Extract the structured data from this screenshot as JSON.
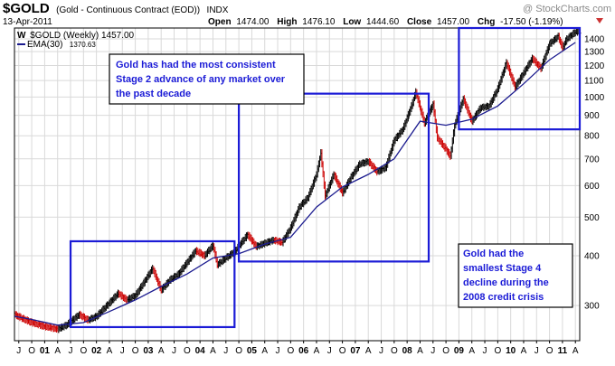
{
  "header": {
    "symbol": "$GOLD",
    "description": "(Gold - Continuous Contract (EOD))",
    "exchange": "INDX",
    "date": "13-Apr-2011",
    "watermark": "@ StockCharts.com",
    "quote": {
      "open_label": "Open",
      "open": "1474.00",
      "high_label": "High",
      "high": "1476.10",
      "low_label": "Low",
      "low": "1444.60",
      "close_label": "Close",
      "close": "1457.00",
      "chg_label": "Chg",
      "chg": "-17.50 (-1.19%)"
    },
    "legend_main": "$GOLD (Weekly) 1457.00",
    "legend_ema_label": "EMA(30)",
    "legend_ema_value": "1370.63"
  },
  "colors": {
    "price_up": "#000000",
    "price_down": "#cc0000",
    "ema": "#1b1b8f",
    "annotation_box": "#1b1bd6",
    "grid": "#d9d9d9",
    "down_arrow": "#cc3333"
  },
  "annotations": [
    {
      "lines": [
        "Gold has had the most consistent",
        "Stage 2 advance of any market over",
        "the past decade"
      ]
    },
    {
      "lines": [
        "Gold had the",
        "smallest Stage 4",
        "decline during the",
        "2008 credit crisis"
      ]
    }
  ],
  "chart_data": {
    "type": "line",
    "title": "$GOLD (Gold - Continuous Contract (EOD)) INDX",
    "xlabel": "",
    "ylabel": "",
    "scale": "log",
    "ylim": [
      245,
      1490
    ],
    "xlim": [
      "2000-06",
      "2011-05"
    ],
    "y_ticks": [
      300,
      400,
      500,
      600,
      700,
      800,
      900,
      1000,
      1100,
      1200,
      1300,
      1400
    ],
    "grid": true,
    "legend": "top-left",
    "x_tick_labels": [
      {
        "x": "2000-07",
        "label": "J",
        "bold": false
      },
      {
        "x": "2000-10",
        "label": "O",
        "bold": false
      },
      {
        "x": "2001-01",
        "label": "01",
        "bold": true
      },
      {
        "x": "2001-04",
        "label": "A",
        "bold": false
      },
      {
        "x": "2001-07",
        "label": "J",
        "bold": false
      },
      {
        "x": "2001-10",
        "label": "O",
        "bold": false
      },
      {
        "x": "2002-01",
        "label": "02",
        "bold": true
      },
      {
        "x": "2002-04",
        "label": "A",
        "bold": false
      },
      {
        "x": "2002-07",
        "label": "J",
        "bold": false
      },
      {
        "x": "2002-10",
        "label": "O",
        "bold": false
      },
      {
        "x": "2003-01",
        "label": "03",
        "bold": true
      },
      {
        "x": "2003-04",
        "label": "A",
        "bold": false
      },
      {
        "x": "2003-07",
        "label": "J",
        "bold": false
      },
      {
        "x": "2003-10",
        "label": "O",
        "bold": false
      },
      {
        "x": "2004-01",
        "label": "04",
        "bold": true
      },
      {
        "x": "2004-04",
        "label": "A",
        "bold": false
      },
      {
        "x": "2004-07",
        "label": "J",
        "bold": false
      },
      {
        "x": "2004-10",
        "label": "O",
        "bold": false
      },
      {
        "x": "2005-01",
        "label": "05",
        "bold": true
      },
      {
        "x": "2005-04",
        "label": "A",
        "bold": false
      },
      {
        "x": "2005-07",
        "label": "J",
        "bold": false
      },
      {
        "x": "2005-10",
        "label": "O",
        "bold": false
      },
      {
        "x": "2006-01",
        "label": "06",
        "bold": true
      },
      {
        "x": "2006-04",
        "label": "A",
        "bold": false
      },
      {
        "x": "2006-07",
        "label": "J",
        "bold": false
      },
      {
        "x": "2006-10",
        "label": "O",
        "bold": false
      },
      {
        "x": "2007-01",
        "label": "07",
        "bold": true
      },
      {
        "x": "2007-04",
        "label": "A",
        "bold": false
      },
      {
        "x": "2007-07",
        "label": "J",
        "bold": false
      },
      {
        "x": "2007-10",
        "label": "O",
        "bold": false
      },
      {
        "x": "2008-01",
        "label": "08",
        "bold": true
      },
      {
        "x": "2008-04",
        "label": "A",
        "bold": false
      },
      {
        "x": "2008-07",
        "label": "J",
        "bold": false
      },
      {
        "x": "2008-10",
        "label": "O",
        "bold": false
      },
      {
        "x": "2009-01",
        "label": "09",
        "bold": true
      },
      {
        "x": "2009-04",
        "label": "A",
        "bold": false
      },
      {
        "x": "2009-07",
        "label": "J",
        "bold": false
      },
      {
        "x": "2009-10",
        "label": "O",
        "bold": false
      },
      {
        "x": "2010-01",
        "label": "10",
        "bold": true
      },
      {
        "x": "2010-04",
        "label": "A",
        "bold": false
      },
      {
        "x": "2010-07",
        "label": "J",
        "bold": false
      },
      {
        "x": "2010-10",
        "label": "O",
        "bold": false
      },
      {
        "x": "2011-01",
        "label": "11",
        "bold": true
      },
      {
        "x": "2011-04",
        "label": "A",
        "bold": false
      }
    ],
    "series": [
      {
        "name": "$GOLD (Weekly)",
        "style": "price",
        "points": [
          {
            "x": "2000-06",
            "y": 285
          },
          {
            "x": "2000-08",
            "y": 278
          },
          {
            "x": "2000-10",
            "y": 272
          },
          {
            "x": "2001-01",
            "y": 266
          },
          {
            "x": "2001-04",
            "y": 262
          },
          {
            "x": "2001-06",
            "y": 268
          },
          {
            "x": "2001-09",
            "y": 285
          },
          {
            "x": "2001-11",
            "y": 276
          },
          {
            "x": "2002-01",
            "y": 282
          },
          {
            "x": "2002-04",
            "y": 305
          },
          {
            "x": "2002-06",
            "y": 322
          },
          {
            "x": "2002-08",
            "y": 310
          },
          {
            "x": "2002-10",
            "y": 318
          },
          {
            "x": "2002-12",
            "y": 343
          },
          {
            "x": "2003-02",
            "y": 372
          },
          {
            "x": "2003-04",
            "y": 328
          },
          {
            "x": "2003-06",
            "y": 348
          },
          {
            "x": "2003-08",
            "y": 360
          },
          {
            "x": "2003-10",
            "y": 385
          },
          {
            "x": "2003-12",
            "y": 412
          },
          {
            "x": "2004-02",
            "y": 400
          },
          {
            "x": "2004-04",
            "y": 425
          },
          {
            "x": "2004-05",
            "y": 380
          },
          {
            "x": "2004-07",
            "y": 395
          },
          {
            "x": "2004-09",
            "y": 410
          },
          {
            "x": "2004-12",
            "y": 452
          },
          {
            "x": "2005-02",
            "y": 422
          },
          {
            "x": "2005-04",
            "y": 430
          },
          {
            "x": "2005-06",
            "y": 438
          },
          {
            "x": "2005-08",
            "y": 432
          },
          {
            "x": "2005-10",
            "y": 470
          },
          {
            "x": "2005-12",
            "y": 530
          },
          {
            "x": "2006-02",
            "y": 560
          },
          {
            "x": "2006-04",
            "y": 640
          },
          {
            "x": "2006-05",
            "y": 725
          },
          {
            "x": "2006-06",
            "y": 565
          },
          {
            "x": "2006-08",
            "y": 640
          },
          {
            "x": "2006-10",
            "y": 575
          },
          {
            "x": "2006-12",
            "y": 630
          },
          {
            "x": "2007-02",
            "y": 680
          },
          {
            "x": "2007-04",
            "y": 690
          },
          {
            "x": "2007-06",
            "y": 650
          },
          {
            "x": "2007-08",
            "y": 665
          },
          {
            "x": "2007-10",
            "y": 780
          },
          {
            "x": "2007-12",
            "y": 830
          },
          {
            "x": "2008-02",
            "y": 950
          },
          {
            "x": "2008-03",
            "y": 1030
          },
          {
            "x": "2008-05",
            "y": 860
          },
          {
            "x": "2008-07",
            "y": 960
          },
          {
            "x": "2008-08",
            "y": 790
          },
          {
            "x": "2008-10",
            "y": 740
          },
          {
            "x": "2008-11",
            "y": 710
          },
          {
            "x": "2008-12",
            "y": 850
          },
          {
            "x": "2009-02",
            "y": 990
          },
          {
            "x": "2009-04",
            "y": 870
          },
          {
            "x": "2009-06",
            "y": 940
          },
          {
            "x": "2009-08",
            "y": 950
          },
          {
            "x": "2009-10",
            "y": 1050
          },
          {
            "x": "2009-12",
            "y": 1220
          },
          {
            "x": "2010-02",
            "y": 1060
          },
          {
            "x": "2010-04",
            "y": 1150
          },
          {
            "x": "2010-06",
            "y": 1250
          },
          {
            "x": "2010-08",
            "y": 1180
          },
          {
            "x": "2010-10",
            "y": 1360
          },
          {
            "x": "2010-12",
            "y": 1420
          },
          {
            "x": "2011-01",
            "y": 1330
          },
          {
            "x": "2011-02",
            "y": 1400
          },
          {
            "x": "2011-04",
            "y": 1457
          }
        ]
      },
      {
        "name": "EMA(30)",
        "style": "line",
        "points": [
          {
            "x": "2000-06",
            "y": 282
          },
          {
            "x": "2000-10",
            "y": 277
          },
          {
            "x": "2001-04",
            "y": 268
          },
          {
            "x": "2001-10",
            "y": 272
          },
          {
            "x": "2002-04",
            "y": 290
          },
          {
            "x": "2002-10",
            "y": 310
          },
          {
            "x": "2003-04",
            "y": 335
          },
          {
            "x": "2003-10",
            "y": 360
          },
          {
            "x": "2004-04",
            "y": 395
          },
          {
            "x": "2004-10",
            "y": 405
          },
          {
            "x": "2005-04",
            "y": 428
          },
          {
            "x": "2005-10",
            "y": 445
          },
          {
            "x": "2006-04",
            "y": 530
          },
          {
            "x": "2006-10",
            "y": 595
          },
          {
            "x": "2007-04",
            "y": 640
          },
          {
            "x": "2007-10",
            "y": 700
          },
          {
            "x": "2008-04",
            "y": 870
          },
          {
            "x": "2008-10",
            "y": 850
          },
          {
            "x": "2009-04",
            "y": 880
          },
          {
            "x": "2009-10",
            "y": 950
          },
          {
            "x": "2010-04",
            "y": 1080
          },
          {
            "x": "2010-10",
            "y": 1240
          },
          {
            "x": "2011-04",
            "y": 1370.63
          }
        ]
      }
    ],
    "highlight_boxes": [
      {
        "x0": "2001-07",
        "x1": "2004-09",
        "y0": 265,
        "y1": 435
      },
      {
        "x0": "2004-10",
        "x1": "2008-06",
        "y0": 387,
        "y1": 1020
      },
      {
        "x0": "2009-01",
        "x1": "2011-05",
        "y0": 830,
        "y1": 1490
      }
    ]
  }
}
